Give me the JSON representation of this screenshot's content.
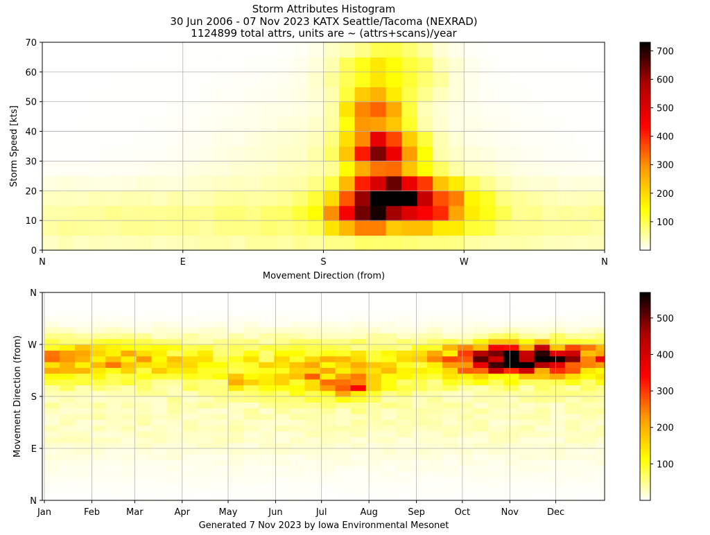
{
  "title": {
    "line1": "Storm Attributes Histogram",
    "line2": "30 Jun 2006 - 07 Nov 2023 KATX Seattle/Tacoma (NEXRAD)",
    "line3": "1124899 total attrs, units are ~ (attrs+scans)/year"
  },
  "footer": "Generated 7 Nov 2023 by Iowa Environmental Mesonet",
  "colormap": {
    "name": "hot_r",
    "stops": [
      "#ffffff",
      "#ffff00",
      "#ff9900",
      "#ff0000",
      "#b00000",
      "#000000"
    ]
  },
  "chart_data": [
    {
      "type": "heatmap",
      "name": "speed-vs-direction",
      "xlabel": "Movement Direction (from)",
      "ylabel": "Storm Speed [kts]",
      "xticks": [
        "N",
        "E",
        "S",
        "W",
        "N"
      ],
      "yticks": [
        "0",
        "10",
        "20",
        "30",
        "40",
        "50",
        "60",
        "70"
      ],
      "xlim": [
        0,
        360
      ],
      "ylim": [
        0,
        70
      ],
      "grid": true,
      "colorbar": {
        "ticks": [
          "100",
          "200",
          "300",
          "400",
          "500",
          "600",
          "700"
        ],
        "vmin": 0,
        "vmax": 730
      },
      "grid_shape": {
        "cols": 36,
        "rows": 14,
        "col_width_deg": 10,
        "row_height_kts": 5
      },
      "approx_peaks": [
        {
          "direction_deg": 220,
          "speed_kts": 17.5,
          "value": 720
        },
        {
          "direction_deg": 205,
          "speed_kts": 22.5,
          "value": 680
        },
        {
          "direction_deg": 230,
          "speed_kts": 22.5,
          "value": 620
        },
        {
          "direction_deg": 215,
          "speed_kts": 35,
          "value": 600
        },
        {
          "direction_deg": 245,
          "speed_kts": 17.5,
          "value": 560
        },
        {
          "direction_deg": 185,
          "speed_kts": 12.5,
          "value": 330
        },
        {
          "direction_deg": 210,
          "speed_kts": 47.5,
          "value": 350
        },
        {
          "direction_deg": 220,
          "speed_kts": 62.5,
          "value": 160
        }
      ]
    },
    {
      "type": "heatmap",
      "name": "direction-vs-month",
      "xlabel": "",
      "ylabel": "Movement Direction (from)",
      "xticks": [
        "Jan",
        "Feb",
        "Mar",
        "Apr",
        "May",
        "Jun",
        "Jul",
        "Aug",
        "Sep",
        "Oct",
        "Nov",
        "Dec"
      ],
      "yticks": [
        "N",
        "E",
        "S",
        "W",
        "N"
      ],
      "xlim": [
        1,
        366
      ],
      "ylim": [
        0,
        360
      ],
      "grid": true,
      "colorbar": {
        "ticks": [
          "100",
          "200",
          "300",
          "400",
          "500"
        ],
        "vmin": 0,
        "vmax": 570
      },
      "grid_shape": {
        "cols": 37,
        "rows": 36,
        "col_width_days": 10,
        "row_height_deg": 10
      },
      "approx_peaks": [
        {
          "day": 295,
          "direction_deg": 245,
          "value": 560
        },
        {
          "day": 305,
          "direction_deg": 255,
          "value": 500
        },
        {
          "day": 315,
          "direction_deg": 245,
          "value": 520
        },
        {
          "day": 325,
          "direction_deg": 235,
          "value": 460
        },
        {
          "day": 335,
          "direction_deg": 245,
          "value": 420
        },
        {
          "day": 270,
          "direction_deg": 250,
          "value": 330
        },
        {
          "day": 10,
          "direction_deg": 240,
          "value": 250
        },
        {
          "day": 200,
          "direction_deg": 200,
          "value": 300
        }
      ]
    }
  ]
}
